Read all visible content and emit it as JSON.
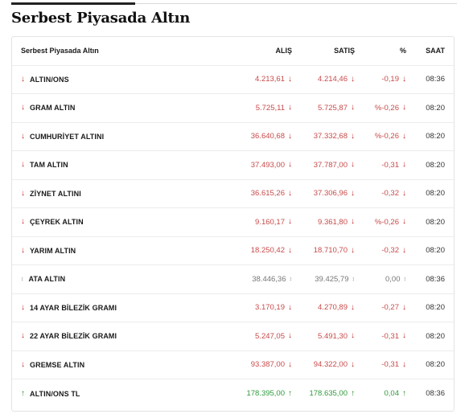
{
  "title": "Serbest Piyasada Altın",
  "headers": {
    "name": "Serbest Piyasada Altın",
    "alis": "ALIŞ",
    "satis": "SATIŞ",
    "pct": "%",
    "saat": "SAAT"
  },
  "colors": {
    "down": "#c62828",
    "up": "#2e8b2e",
    "flat": "#888888"
  },
  "rows": [
    {
      "name": "ALTIN/ONS",
      "alis": "4.213,61",
      "satis": "4.214,46",
      "pct": "-0,19",
      "saat": "08:36",
      "trend": "down"
    },
    {
      "name": "GRAM ALTIN",
      "alis": "5.725,11",
      "satis": "5.725,87",
      "pct": "%-0,26",
      "saat": "08:20",
      "trend": "down"
    },
    {
      "name": "CUMHURİYET ALTINI",
      "alis": "36.640,68",
      "satis": "37.332,68",
      "pct": "%-0,26",
      "saat": "08:20",
      "trend": "down"
    },
    {
      "name": "TAM ALTIN",
      "alis": "37.493,00",
      "satis": "37.787,00",
      "pct": "-0,31",
      "saat": "08:20",
      "trend": "down"
    },
    {
      "name": "ZİYNET ALTINI",
      "alis": "36.615,26",
      "satis": "37.306,96",
      "pct": "-0,32",
      "saat": "08:20",
      "trend": "down"
    },
    {
      "name": "ÇEYREK ALTIN",
      "alis": "9.160,17",
      "satis": "9.361,80",
      "pct": "%-0,26",
      "saat": "08:20",
      "trend": "down"
    },
    {
      "name": "YARIM ALTIN",
      "alis": "18.250,42",
      "satis": "18.710,70",
      "pct": "-0,32",
      "saat": "08:20",
      "trend": "down"
    },
    {
      "name": "ATA ALTIN",
      "alis": "38.446,36",
      "satis": "39.425,79",
      "pct": "0,00",
      "saat": "08:36",
      "trend": "flat"
    },
    {
      "name": "14 AYAR BİLEZİK GRAMI",
      "alis": "3.170,19",
      "satis": "4.270,89",
      "pct": "-0,27",
      "saat": "08:20",
      "trend": "down"
    },
    {
      "name": "22 AYAR BİLEZİK GRAMI",
      "alis": "5.247,05",
      "satis": "5.491,30",
      "pct": "-0,31",
      "saat": "08:20",
      "trend": "down"
    },
    {
      "name": "GREMSE ALTIN",
      "alis": "93.387,00",
      "satis": "94.322,00",
      "pct": "-0,31",
      "saat": "08:20",
      "trend": "down"
    },
    {
      "name": "ALTIN/ONS TL",
      "alis": "178.395,00",
      "satis": "178.635,00",
      "pct": "0,04",
      "saat": "08:36",
      "trend": "up"
    }
  ]
}
